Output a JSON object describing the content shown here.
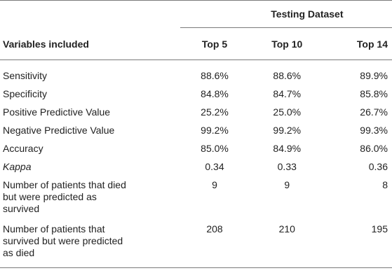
{
  "table": {
    "group_header": "Testing Dataset",
    "columns": [
      "Variables included",
      "Top 5",
      "Top 10",
      "Top 14"
    ],
    "rows": [
      {
        "label": "Sensitivity",
        "v1": "88.6%",
        "v2": "88.6%",
        "v3": "89.9%"
      },
      {
        "label": "Specificity",
        "v1": "84.8%",
        "v2": "84.7%",
        "v3": "85.8%"
      },
      {
        "label": "Positive Predictive Value",
        "v1": "25.2%",
        "v2": "25.0%",
        "v3": "26.7%"
      },
      {
        "label": "Negative Predictive Value",
        "v1": "99.2%",
        "v2": "99.2%",
        "v3": "99.3%"
      },
      {
        "label": "Accuracy",
        "v1": "85.0%",
        "v2": "84.9%",
        "v3": "86.0%"
      },
      {
        "label": "Kappa",
        "v1": "0.34",
        "v2": "0.33",
        "v3": "0.36"
      },
      {
        "label_lines": [
          "Number of patients that died",
          "but were predicted as",
          "survived"
        ],
        "v1": "9",
        "v2": "9",
        "v3": "8"
      },
      {
        "label_lines": [
          "Number of patients that",
          "survived but were predicted",
          "as died"
        ],
        "v1": "208",
        "v2": "210",
        "v3": "195"
      }
    ]
  }
}
